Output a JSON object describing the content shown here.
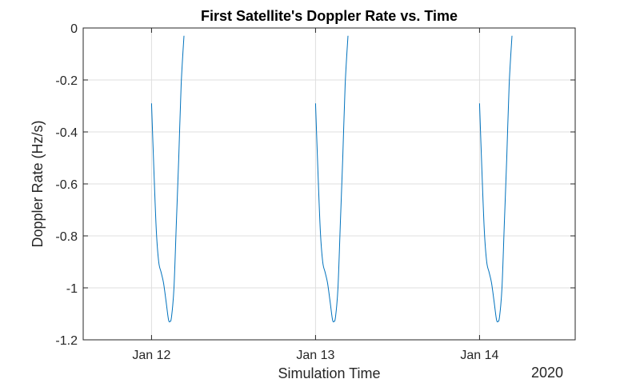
{
  "chart_data": {
    "type": "line",
    "title": "First Satellite's Doppler Rate vs. Time",
    "xlabel": "Simulation Time",
    "ylabel": "Doppler Rate (Hz/s)",
    "x_secondary_label": "2020",
    "xlim": [
      "2020-01-11T14:00",
      "2020-01-14T14:00"
    ],
    "ylim": [
      -1.2,
      0
    ],
    "x_ticks": [
      {
        "label": "Jan 12",
        "value": "2020-01-12T00:00"
      },
      {
        "label": "Jan 13",
        "value": "2020-01-13T00:00"
      },
      {
        "label": "Jan 14",
        "value": "2020-01-14T00:00"
      }
    ],
    "y_ticks": [
      {
        "label": "0",
        "value": 0
      },
      {
        "label": "-0.2",
        "value": -0.2
      },
      {
        "label": "-0.4",
        "value": -0.4
      },
      {
        "label": "-0.6",
        "value": -0.6
      },
      {
        "label": "-0.8",
        "value": -0.8
      },
      {
        "label": "-1",
        "value": -1
      },
      {
        "label": "-1.2",
        "value": -1.2
      }
    ],
    "grid": true,
    "series": [
      {
        "color": "#0072bd",
        "segments": [
          [
            [
              "2020-01-12T00:00",
              -0.29
            ],
            [
              "2020-01-12T00:21",
              -0.55
            ],
            [
              "2020-01-12T00:42",
              -0.78
            ],
            [
              "2020-01-12T01:03",
              -0.9
            ],
            [
              "2020-01-12T01:24",
              -0.94
            ],
            [
              "2020-01-12T01:45",
              -0.98
            ],
            [
              "2020-01-12T02:07",
              -1.05
            ],
            [
              "2020-01-12T02:28",
              -1.12
            ],
            [
              "2020-01-12T02:42",
              -1.13
            ],
            [
              "2020-01-12T02:56",
              -1.11
            ],
            [
              "2020-01-12T03:17",
              -1.0
            ],
            [
              "2020-01-12T03:38",
              -0.75
            ],
            [
              "2020-01-12T03:59",
              -0.5
            ],
            [
              "2020-01-12T04:20",
              -0.22
            ],
            [
              "2020-01-12T04:45",
              -0.03
            ]
          ],
          [
            [
              "2020-01-13T00:00",
              -0.29
            ],
            [
              "2020-01-13T00:21",
              -0.55
            ],
            [
              "2020-01-13T00:42",
              -0.78
            ],
            [
              "2020-01-13T01:03",
              -0.9
            ],
            [
              "2020-01-13T01:24",
              -0.94
            ],
            [
              "2020-01-13T01:45",
              -0.98
            ],
            [
              "2020-01-13T02:07",
              -1.05
            ],
            [
              "2020-01-13T02:28",
              -1.12
            ],
            [
              "2020-01-13T02:42",
              -1.13
            ],
            [
              "2020-01-13T02:56",
              -1.11
            ],
            [
              "2020-01-13T03:17",
              -1.0
            ],
            [
              "2020-01-13T03:38",
              -0.75
            ],
            [
              "2020-01-13T03:59",
              -0.5
            ],
            [
              "2020-01-13T04:20",
              -0.22
            ],
            [
              "2020-01-13T04:45",
              -0.03
            ]
          ],
          [
            [
              "2020-01-14T00:00",
              -0.29
            ],
            [
              "2020-01-14T00:21",
              -0.55
            ],
            [
              "2020-01-14T00:42",
              -0.78
            ],
            [
              "2020-01-14T01:03",
              -0.9
            ],
            [
              "2020-01-14T01:24",
              -0.94
            ],
            [
              "2020-01-14T01:45",
              -0.98
            ],
            [
              "2020-01-14T02:07",
              -1.05
            ],
            [
              "2020-01-14T02:28",
              -1.12
            ],
            [
              "2020-01-14T02:42",
              -1.13
            ],
            [
              "2020-01-14T02:56",
              -1.11
            ],
            [
              "2020-01-14T03:17",
              -1.0
            ],
            [
              "2020-01-14T03:38",
              -0.75
            ],
            [
              "2020-01-14T03:59",
              -0.5
            ],
            [
              "2020-01-14T04:20",
              -0.22
            ],
            [
              "2020-01-14T04:45",
              -0.03
            ]
          ]
        ]
      }
    ]
  }
}
